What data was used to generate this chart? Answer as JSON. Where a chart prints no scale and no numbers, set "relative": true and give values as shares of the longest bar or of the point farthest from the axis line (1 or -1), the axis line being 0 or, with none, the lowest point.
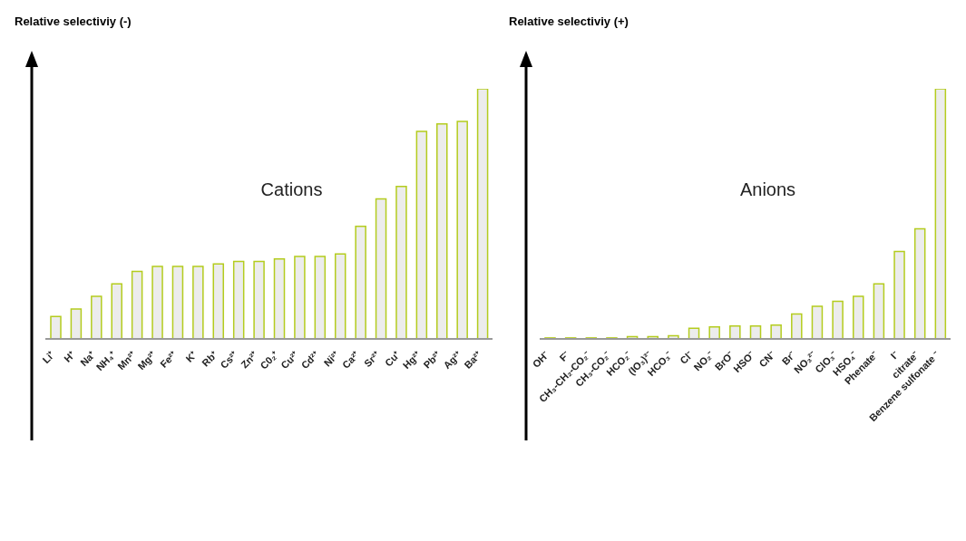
{
  "chart_data": [
    {
      "type": "bar",
      "relative": true,
      "ylabel": "Relative selectiviy (-)",
      "annotations": [
        "Cations"
      ],
      "color": "#b4cc1e",
      "categories": [
        "Li⁺",
        "H⁺",
        "Na⁺",
        "NH₄⁺",
        "Mn²⁺",
        "Mg²⁺",
        "Fe²⁺",
        "K⁺",
        "Rb⁺",
        "Cs²⁺",
        "Zn²⁺",
        "C0₂⁺",
        "Cu²⁺",
        "Cd²⁺",
        "Ni²⁺",
        "Ca²⁺",
        "Sr²⁺",
        "Cu⁺",
        "Hg²⁺",
        "Pb²⁺",
        "Ag²⁺",
        "Ba²⁺"
      ],
      "values": [
        0.09,
        0.12,
        0.17,
        0.22,
        0.27,
        0.29,
        0.29,
        0.29,
        0.3,
        0.31,
        0.31,
        0.32,
        0.33,
        0.33,
        0.34,
        0.45,
        0.56,
        0.61,
        0.83,
        0.86,
        0.87,
        1
      ]
    },
    {
      "type": "bar",
      "relative": true,
      "ylabel": "Relative selectiviy (+)",
      "annotations": [
        "Anions"
      ],
      "color": "#b4cc1e",
      "categories": [
        "OH⁻",
        "F⁻",
        "CH₃-CH₂-CO₂⁻",
        "CH₃-CO₂⁻",
        "HCO₂⁻",
        "(IO₃)³⁻",
        "HCO₃⁻",
        "Cl⁻",
        "NO₂⁻",
        "BrO⁻",
        "HSO⁻",
        "CN⁻",
        "Br⁻",
        "NO₃²⁻",
        "ClO₃⁻",
        "HSO₄⁻",
        "Phenate⁻",
        "I⁻",
        "citrate⁻",
        "Benzene sulfonate ⁻"
      ],
      "values": [
        0.004,
        0.004,
        0.004,
        0.004,
        0.009,
        0.009,
        0.013,
        0.043,
        0.048,
        0.052,
        0.052,
        0.055,
        0.1,
        0.13,
        0.15,
        0.17,
        0.22,
        0.35,
        0.44,
        1
      ]
    }
  ]
}
